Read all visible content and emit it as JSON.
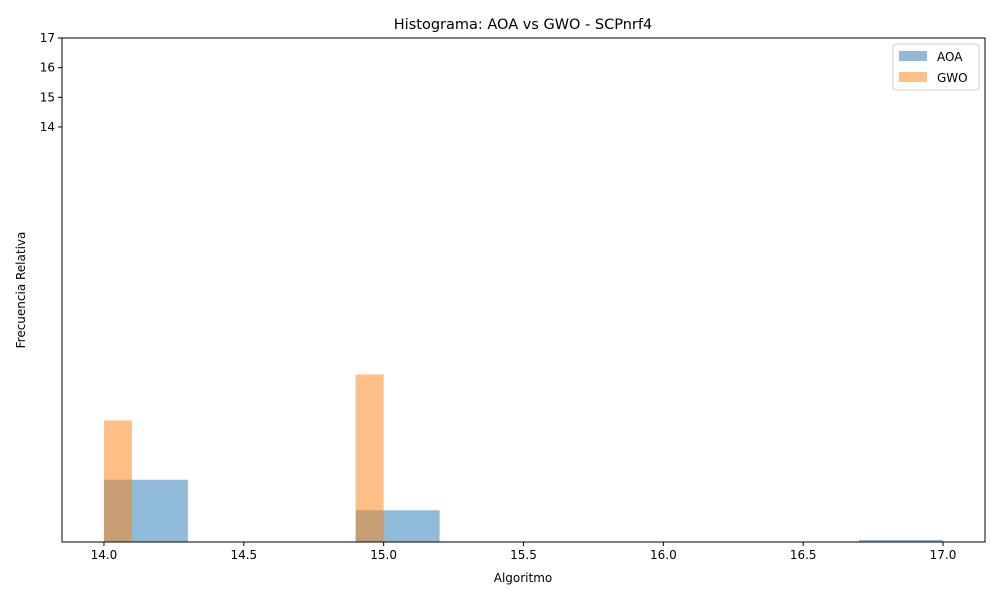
{
  "chart_data": {
    "type": "bar",
    "title": "Histograma: AOA vs GWO - SCPnrf4",
    "xlabel": "Algoritmo",
    "ylabel": "Frecuencia Relativa",
    "xlim": [
      13.85,
      17.15
    ],
    "xticks": [
      14.0,
      14.5,
      15.0,
      15.5,
      16.0,
      16.5,
      17.0
    ],
    "xtick_labels": [
      "14.0",
      "14.5",
      "15.0",
      "15.5",
      "16.0",
      "16.5",
      "17.0"
    ],
    "yticks": [
      14,
      15,
      16,
      17
    ],
    "ytick_labels": [
      "14",
      "15",
      "16",
      "17"
    ],
    "legend_position": "top-right",
    "series": [
      {
        "name": "AOA",
        "color": "#1f77b4",
        "alpha": 0.5,
        "bins": [
          {
            "x0": 14.0,
            "x1": 14.3,
            "height": 2.1
          },
          {
            "x0": 14.9,
            "x1": 15.2,
            "height": 1.07
          },
          {
            "x0": 16.7,
            "x1": 17.0,
            "height": 0.07
          }
        ]
      },
      {
        "name": "GWO",
        "color": "#ff7f0e",
        "alpha": 0.5,
        "bins": [
          {
            "x0": 14.0,
            "x1": 14.1,
            "height": 4.1
          },
          {
            "x0": 14.9,
            "x1": 15.0,
            "height": 5.65
          }
        ]
      }
    ]
  }
}
